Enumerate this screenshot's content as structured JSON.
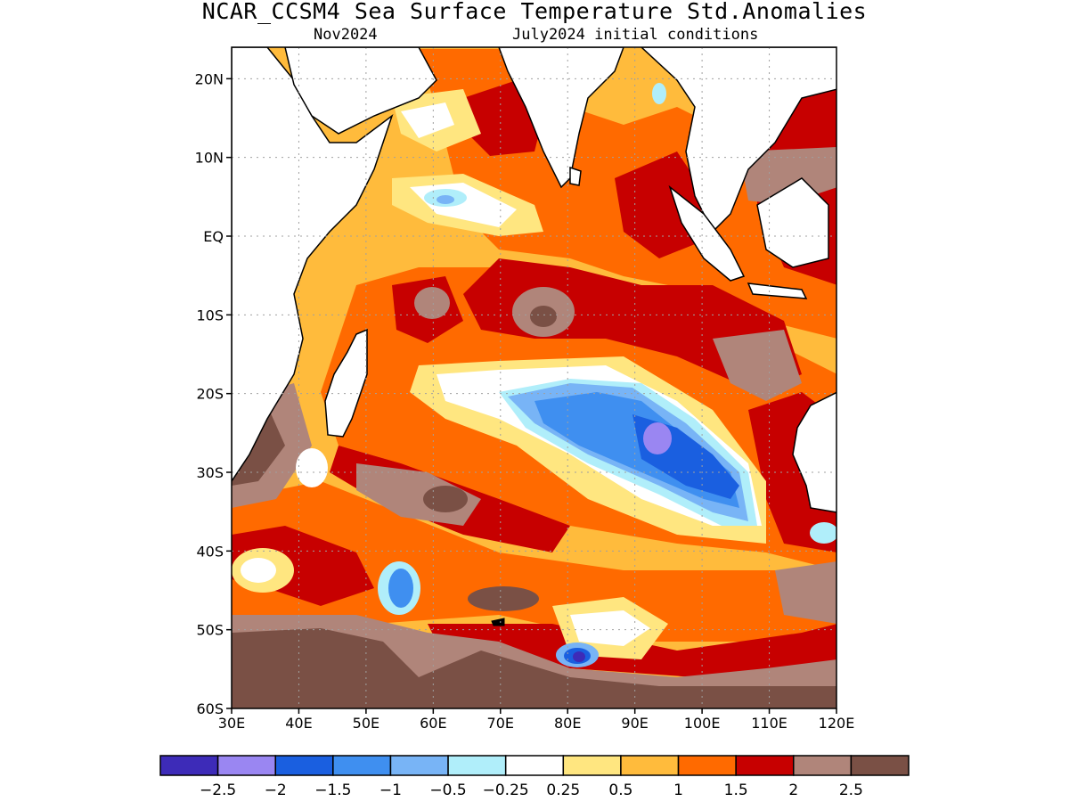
{
  "title": "NCAR_CCSM4 Sea Surface Temperature Std.Anomalies",
  "subtitle_left": "Nov2024",
  "subtitle_right": "July2024 initial conditions",
  "map": {
    "lon_range": [
      30,
      120
    ],
    "lat_range": [
      -60,
      24
    ],
    "lat_ticks": [
      {
        "value": 20,
        "label": "20N"
      },
      {
        "value": 10,
        "label": "10N"
      },
      {
        "value": 0,
        "label": "EQ"
      },
      {
        "value": -10,
        "label": "10S"
      },
      {
        "value": -20,
        "label": "20S"
      },
      {
        "value": -30,
        "label": "30S"
      },
      {
        "value": -40,
        "label": "40S"
      },
      {
        "value": -50,
        "label": "50S"
      },
      {
        "value": -60,
        "label": "60S"
      }
    ],
    "lon_ticks": [
      {
        "value": 30,
        "label": "30E"
      },
      {
        "value": 40,
        "label": "40E"
      },
      {
        "value": 50,
        "label": "50E"
      },
      {
        "value": 60,
        "label": "60E"
      },
      {
        "value": 70,
        "label": "70E"
      },
      {
        "value": 80,
        "label": "80E"
      },
      {
        "value": 90,
        "label": "90E"
      },
      {
        "value": 100,
        "label": "100E"
      },
      {
        "value": 110,
        "label": "110E"
      },
      {
        "value": 120,
        "label": "120E"
      }
    ],
    "grid": true
  },
  "colorbar": {
    "colors": [
      "#3d2bb8",
      "#9a86f2",
      "#1a5fe0",
      "#3f8ff0",
      "#78b4f6",
      "#b0eefa",
      "#ffffff",
      "#ffe680",
      "#ffbb3c",
      "#ff6a00",
      "#c70000",
      "#b0857a",
      "#7a5045"
    ],
    "labels": [
      "−2.5",
      "−2",
      "−1.5",
      "−1",
      "−0.5",
      "−0.25",
      "0.25",
      "0.5",
      "1",
      "1.5",
      "2",
      "2.5"
    ]
  }
}
